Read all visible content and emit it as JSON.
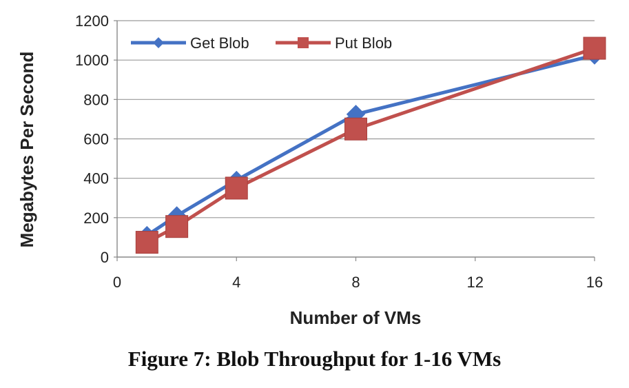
{
  "caption": "Figure 7: Blob Throughput for 1-16 VMs",
  "chart_data": {
    "type": "line",
    "title": "",
    "xlabel": "Number of VMs",
    "ylabel": "Megabytes Per Second",
    "xlim": [
      0,
      16
    ],
    "ylim": [
      0,
      1200
    ],
    "xticks": [
      0,
      4,
      8,
      12,
      16
    ],
    "yticks": [
      0,
      200,
      400,
      600,
      800,
      1000,
      1200
    ],
    "grid": "horizontal",
    "legend": "top-left",
    "series": [
      {
        "name": "Get Blob",
        "marker": "diamond",
        "color": "#4472c4",
        "x": [
          1,
          2,
          4,
          8,
          16
        ],
        "y": [
          110,
          210,
          390,
          725,
          1025
        ]
      },
      {
        "name": "Put Blob",
        "marker": "square",
        "color": "#c0504d",
        "x": [
          1,
          2,
          4,
          8,
          16
        ],
        "y": [
          75,
          155,
          350,
          650,
          1060
        ]
      }
    ]
  }
}
